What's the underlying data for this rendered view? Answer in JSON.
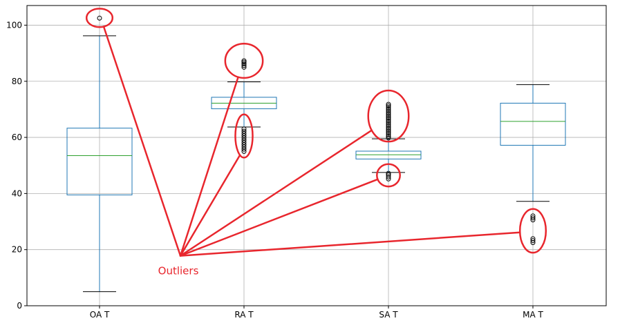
{
  "chart_data": {
    "type": "box",
    "categories": [
      "OA T",
      "RA T",
      "SA T",
      "MA T"
    ],
    "ylim": [
      0,
      107
    ],
    "yticks": [
      0,
      20,
      40,
      60,
      80,
      100
    ],
    "grid": true,
    "boxes": [
      {
        "category": "OA T",
        "whisker_low": 5,
        "q1": 39.5,
        "median": 53.5,
        "q3": 63.3,
        "whisker_high": 96.2,
        "outliers": [
          102.5
        ]
      },
      {
        "category": "RA T",
        "whisker_low": 63.7,
        "q1": 70.2,
        "median": 72.2,
        "q3": 74.3,
        "whisker_high": 79.8,
        "outliers": [
          55.0,
          55.8,
          56.6,
          57.4,
          58.2,
          59.0,
          59.8,
          60.6,
          61.4,
          62.2,
          63.0,
          85.0,
          85.6,
          86.2,
          86.8,
          87.3
        ]
      },
      {
        "category": "SA T",
        "whisker_low": 47.5,
        "q1": 52.3,
        "median": 53.8,
        "q3": 55.1,
        "whisker_high": 59.5,
        "outliers": [
          45.2,
          45.9,
          46.6,
          47.2,
          59.8,
          60.4,
          61.0,
          61.6,
          62.2,
          62.8,
          63.4,
          64.0,
          64.6,
          65.2,
          65.8,
          66.4,
          67.0,
          67.6,
          68.2,
          68.8,
          69.4,
          70.0,
          70.6,
          71.2,
          71.8
        ]
      },
      {
        "category": "MA T",
        "whisker_low": 37.2,
        "q1": 57.2,
        "median": 65.7,
        "q3": 72.2,
        "whisker_high": 78.8,
        "outliers": [
          22.5,
          23.2,
          23.9,
          30.6,
          31.3,
          32.0
        ]
      }
    ],
    "colors": {
      "box": "#1f77b4",
      "median": "#2ca02c",
      "whisker": "#1f77b4",
      "cap": "#000000",
      "grid": "#b0b0b0",
      "annotation": "#e8262d"
    },
    "annotation": {
      "text": "Outliers",
      "hub": {
        "category": 1.56,
        "y": 17.8
      },
      "circles": [
        {
          "category": 1,
          "y": 102.6,
          "rx_units": 0.09,
          "ry_units": 3.3
        },
        {
          "category": 2,
          "y": 87.3,
          "rx_units": 0.13,
          "ry_units": 6.1
        },
        {
          "category": 2,
          "y": 60.5,
          "rx_units": 0.06,
          "ry_units": 7.7
        },
        {
          "category": 3,
          "y": 67.6,
          "rx_units": 0.14,
          "ry_units": 9.1
        },
        {
          "category": 3,
          "y": 46.5,
          "rx_units": 0.08,
          "ry_units": 4.0
        },
        {
          "category": 4,
          "y": 26.7,
          "rx_units": 0.09,
          "ry_units": 7.8
        }
      ]
    }
  }
}
